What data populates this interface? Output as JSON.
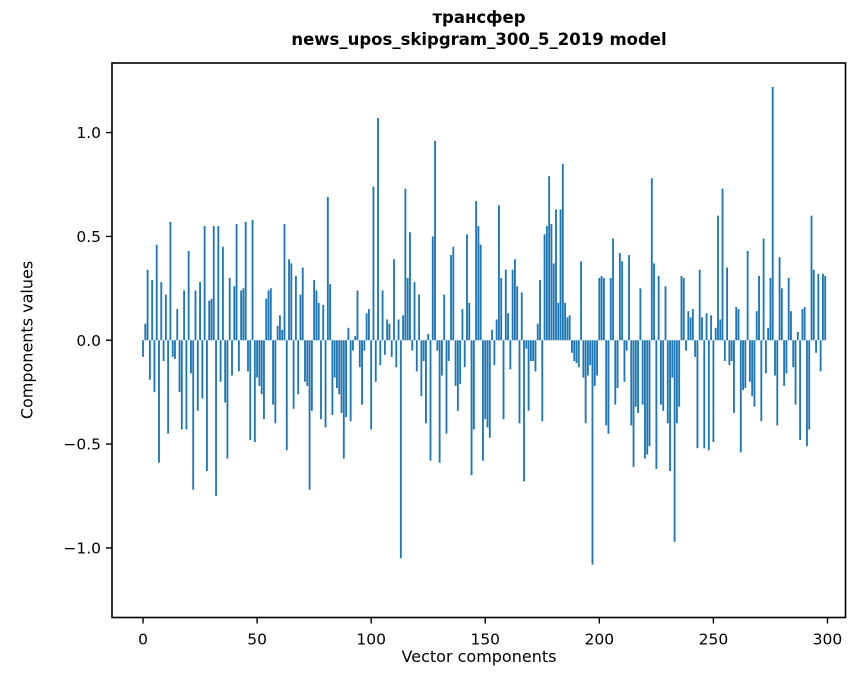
{
  "figure": {
    "background": "#ffffff",
    "text_color": "#000000"
  },
  "chart_data": {
    "type": "bar",
    "title": "трансфер\nnews_upos_skipgram_300_5_2019 model",
    "title_line1": "трансфер",
    "title_line2": "news_upos_skipgram_300_5_2019 model",
    "xlabel": "Vector components",
    "ylabel": "Components values",
    "bar_color": "#1f77b4",
    "axis_color": "#000000",
    "grid": false,
    "legend": null,
    "n_components": 300,
    "xticks": [
      0,
      50,
      100,
      150,
      200,
      250,
      300
    ],
    "yticks": [
      -1.0,
      -0.5,
      0.0,
      0.5,
      1.0
    ],
    "xlim": [
      -13.6,
      307.9
    ],
    "ylim": [
      -1.335,
      1.335
    ],
    "values": [
      -0.08,
      0.08,
      0.34,
      -0.19,
      0.29,
      -0.25,
      0.46,
      -0.59,
      0.28,
      -0.1,
      0.22,
      -0.45,
      0.57,
      -0.08,
      -0.09,
      0.15,
      -0.25,
      -0.43,
      0.24,
      -0.43,
      0.43,
      -0.16,
      -0.72,
      0.24,
      -0.34,
      0.28,
      -0.28,
      0.55,
      -0.63,
      0.19,
      0.2,
      0.55,
      -0.75,
      0.55,
      -0.2,
      0.45,
      -0.3,
      -0.57,
      0.3,
      -0.17,
      0.26,
      0.56,
      -0.15,
      0.24,
      0.25,
      0.57,
      -0.15,
      -0.48,
      0.58,
      -0.49,
      -0.18,
      -0.22,
      -0.26,
      -0.38,
      0.2,
      0.24,
      0.25,
      -0.31,
      -0.4,
      0.07,
      0.12,
      0.05,
      0.56,
      -0.53,
      0.39,
      0.37,
      -0.33,
      0.31,
      -0.26,
      0.22,
      0.35,
      -0.2,
      -0.22,
      -0.72,
      -0.34,
      0.29,
      0.24,
      0.18,
      -0.38,
      0.17,
      -0.42,
      0.69,
      0.27,
      -0.36,
      -0.18,
      -0.23,
      -0.26,
      -0.35,
      -0.57,
      -0.37,
      0.06,
      -0.39,
      -0.05,
      0.02,
      0.24,
      -0.13,
      -0.31,
      -0.05,
      0.13,
      0.15,
      -0.43,
      0.74,
      -0.2,
      1.07,
      -0.12,
      0.24,
      -0.07,
      0.1,
      0.08,
      -0.08,
      0.39,
      -0.13,
      0.1,
      -1.05,
      0.12,
      0.73,
      0.3,
      0.52,
      -0.05,
      0.28,
      -0.15,
      0.22,
      -0.27,
      -0.1,
      -0.4,
      0.03,
      -0.58,
      0.5,
      0.96,
      -0.05,
      -0.59,
      -0.17,
      0.22,
      -0.45,
      -0.1,
      0.41,
      0.45,
      -0.22,
      -0.34,
      -0.21,
      0.15,
      -0.13,
      0.51,
      0.18,
      -0.65,
      -0.43,
      0.67,
      0.55,
      0.46,
      -0.58,
      -0.38,
      -0.42,
      -0.47,
      0.05,
      -0.12,
      0.1,
      0.65,
      0.3,
      -0.38,
      0.34,
      0.13,
      -0.14,
      0.34,
      0.39,
      0.26,
      -0.4,
      0.23,
      -0.68,
      -0.04,
      -0.34,
      -0.1,
      -0.1,
      -0.15,
      0.08,
      0.29,
      -0.39,
      0.51,
      0.55,
      0.79,
      0.56,
      0.37,
      0.63,
      0.18,
      0.63,
      0.85,
      0.18,
      0.11,
      0.12,
      -0.06,
      -0.1,
      -0.11,
      -0.13,
      0.38,
      -0.18,
      -0.4,
      -0.17,
      -0.12,
      -1.08,
      -0.22,
      -0.17,
      0.3,
      0.31,
      0.3,
      -0.41,
      -0.45,
      0.3,
      0.49,
      -0.31,
      -0.23,
      0.42,
      0.38,
      -0.2,
      -0.05,
      0.41,
      -0.41,
      -0.61,
      -0.32,
      -0.35,
      0.25,
      -0.31,
      -0.57,
      -0.55,
      -0.51,
      0.78,
      0.37,
      -0.62,
      0.31,
      -0.31,
      -0.34,
      0.26,
      -0.4,
      -0.63,
      -0.18,
      -0.97,
      -0.4,
      -0.32,
      0.31,
      0.3,
      -0.05,
      0.14,
      0.11,
      0.15,
      -0.08,
      -0.52,
      0.34,
      0.11,
      -0.52,
      0.13,
      -0.53,
      0.12,
      -0.49,
      0.06,
      0.6,
      0.1,
      0.73,
      -0.1,
      0.35,
      -0.12,
      -0.1,
      -0.35,
      0.16,
      0.15,
      -0.54,
      -0.24,
      -0.23,
      0.43,
      -0.2,
      -0.27,
      -0.32,
      0.14,
      0.31,
      -0.39,
      0.49,
      -0.16,
      0.06,
      0.3,
      1.22,
      -0.17,
      -0.41,
      0.4,
      0.25,
      -0.22,
      -0.16,
      0.3,
      0.14,
      -0.13,
      -0.31,
      0.04,
      -0.48,
      0.15,
      0.16,
      -0.51,
      -0.43,
      0.6,
      0.34,
      -0.06,
      0.32,
      -0.15,
      0.32,
      0.31
    ]
  }
}
